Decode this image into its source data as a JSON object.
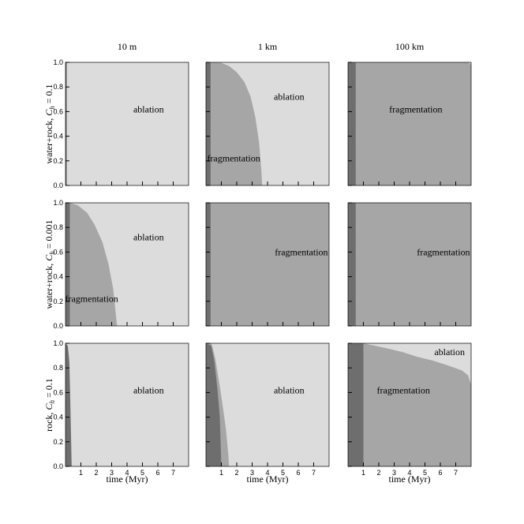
{
  "figure": {
    "column_titles": [
      "10 m",
      "1 km",
      "100 km"
    ],
    "row_labels": [
      {
        "base": "water+rock, ",
        "sym": "C",
        "sub": "h",
        "rest": " = 0.1"
      },
      {
        "base": "water+rock, ",
        "sym": "C",
        "sub": "h",
        "rest": " = 0.001"
      },
      {
        "base": "rock, ",
        "sym": "C",
        "sub": "h",
        "rest": " = 0.1"
      }
    ],
    "xlabel": "time (Myr)",
    "colors": {
      "ablation": "#dcdcdc",
      "fragmentation": "#a6a6a6",
      "dark": "#6e6e6e"
    }
  },
  "chart_data": [
    {
      "type": "area",
      "row": 0,
      "col": 0,
      "xlim": [
        0,
        8
      ],
      "ylim": [
        0,
        1
      ],
      "dark_band": [
        0,
        0.08
      ],
      "fragmentation_boundary": [],
      "labels": [
        {
          "text": "ablation",
          "x": 5.4,
          "y": 0.62
        }
      ]
    },
    {
      "type": "area",
      "row": 0,
      "col": 1,
      "xlim": [
        0,
        8
      ],
      "ylim": [
        0,
        1
      ],
      "dark_band": [
        0,
        0.3
      ],
      "fragmentation_boundary": [
        [
          0.3,
          1.0
        ],
        [
          0.9,
          1.0
        ],
        [
          1.5,
          0.97
        ],
        [
          2.0,
          0.92
        ],
        [
          2.5,
          0.84
        ],
        [
          2.9,
          0.72
        ],
        [
          3.2,
          0.56
        ],
        [
          3.45,
          0.35
        ],
        [
          3.6,
          0.12
        ],
        [
          3.65,
          0.0
        ]
      ],
      "labels": [
        {
          "text": "ablation",
          "x": 5.4,
          "y": 0.72
        },
        {
          "text": "fragmentation",
          "x": 1.8,
          "y": 0.22
        }
      ]
    },
    {
      "type": "area",
      "row": 0,
      "col": 2,
      "xlim": [
        0,
        8
      ],
      "ylim": [
        0,
        1
      ],
      "dark_band": [
        0,
        0.5
      ],
      "fragmentation_boundary": [
        [
          0.5,
          1.0
        ],
        [
          7.8,
          1.0
        ],
        [
          8.0,
          0.98
        ]
      ],
      "labels": [
        {
          "text": "fragmentation",
          "x": 4.4,
          "y": 0.62
        }
      ]
    },
    {
      "type": "area",
      "row": 1,
      "col": 0,
      "xlim": [
        0,
        8
      ],
      "ylim": [
        0,
        1
      ],
      "dark_band": [
        0,
        0.28
      ],
      "fragmentation_boundary": [
        [
          0.28,
          1.0
        ],
        [
          0.8,
          0.98
        ],
        [
          1.4,
          0.92
        ],
        [
          1.9,
          0.82
        ],
        [
          2.4,
          0.68
        ],
        [
          2.8,
          0.5
        ],
        [
          3.1,
          0.3
        ],
        [
          3.25,
          0.12
        ],
        [
          3.35,
          0.0
        ]
      ],
      "labels": [
        {
          "text": "ablation",
          "x": 5.4,
          "y": 0.72
        },
        {
          "text": "fragmentation",
          "x": 1.7,
          "y": 0.22
        }
      ]
    },
    {
      "type": "area",
      "row": 1,
      "col": 1,
      "xlim": [
        0,
        8
      ],
      "ylim": [
        0,
        1
      ],
      "dark_band": [
        0,
        0.3
      ],
      "fragmentation_boundary": [
        [
          0.3,
          1.0
        ],
        [
          8.0,
          1.0
        ]
      ],
      "labels": [
        {
          "text": "fragmentation",
          "x": 6.2,
          "y": 0.6
        }
      ]
    },
    {
      "type": "area",
      "row": 1,
      "col": 2,
      "xlim": [
        0,
        8
      ],
      "ylim": [
        0,
        1
      ],
      "dark_band": [
        0,
        0.5
      ],
      "fragmentation_boundary": [
        [
          0.5,
          1.0
        ],
        [
          8.0,
          1.0
        ]
      ],
      "labels": [
        {
          "text": "fragmentation",
          "x": 6.2,
          "y": 0.6
        }
      ]
    },
    {
      "type": "area",
      "row": 2,
      "col": 0,
      "xlim": [
        0,
        8
      ],
      "ylim": [
        0,
        1
      ],
      "dark_band": [
        0,
        0.45
      ],
      "dark_boundary": [
        [
          0.0,
          1.0
        ],
        [
          0.15,
          0.98
        ],
        [
          0.25,
          0.85
        ],
        [
          0.3,
          0.6
        ],
        [
          0.35,
          0.3
        ],
        [
          0.4,
          0.0
        ]
      ],
      "fragmentation_boundary": [],
      "labels": [
        {
          "text": "ablation",
          "x": 5.4,
          "y": 0.62
        }
      ]
    },
    {
      "type": "area",
      "row": 2,
      "col": 1,
      "xlim": [
        0,
        8
      ],
      "ylim": [
        0,
        1
      ],
      "dark_band": [
        0,
        0.6
      ],
      "dark_boundary": [
        [
          0.0,
          1.0
        ],
        [
          0.35,
          0.98
        ],
        [
          0.55,
          0.85
        ],
        [
          0.75,
          0.62
        ],
        [
          0.9,
          0.4
        ],
        [
          1.0,
          0.0
        ]
      ],
      "fragmentation_boundary": [
        [
          0.35,
          1.0
        ],
        [
          0.6,
          0.88
        ],
        [
          0.9,
          0.65
        ],
        [
          1.1,
          0.48
        ],
        [
          1.3,
          0.3
        ],
        [
          1.45,
          0.1
        ],
        [
          1.5,
          0.0
        ]
      ],
      "labels": [
        {
          "text": "ablation",
          "x": 5.4,
          "y": 0.62
        }
      ]
    },
    {
      "type": "area",
      "row": 2,
      "col": 2,
      "xlim": [
        0,
        8
      ],
      "ylim": [
        0,
        1
      ],
      "dark_band": [
        0,
        1.0
      ],
      "fragmentation_boundary": [
        [
          1.0,
          1.0
        ],
        [
          2.5,
          0.96
        ],
        [
          3.5,
          0.93
        ],
        [
          4.5,
          0.89
        ],
        [
          5.5,
          0.86
        ],
        [
          6.5,
          0.82
        ],
        [
          7.4,
          0.78
        ],
        [
          7.8,
          0.74
        ],
        [
          8.0,
          0.66
        ]
      ],
      "labels": [
        {
          "text": "ablation",
          "x": 6.6,
          "y": 0.93
        },
        {
          "text": "fragmentation",
          "x": 3.6,
          "y": 0.62
        }
      ]
    }
  ]
}
